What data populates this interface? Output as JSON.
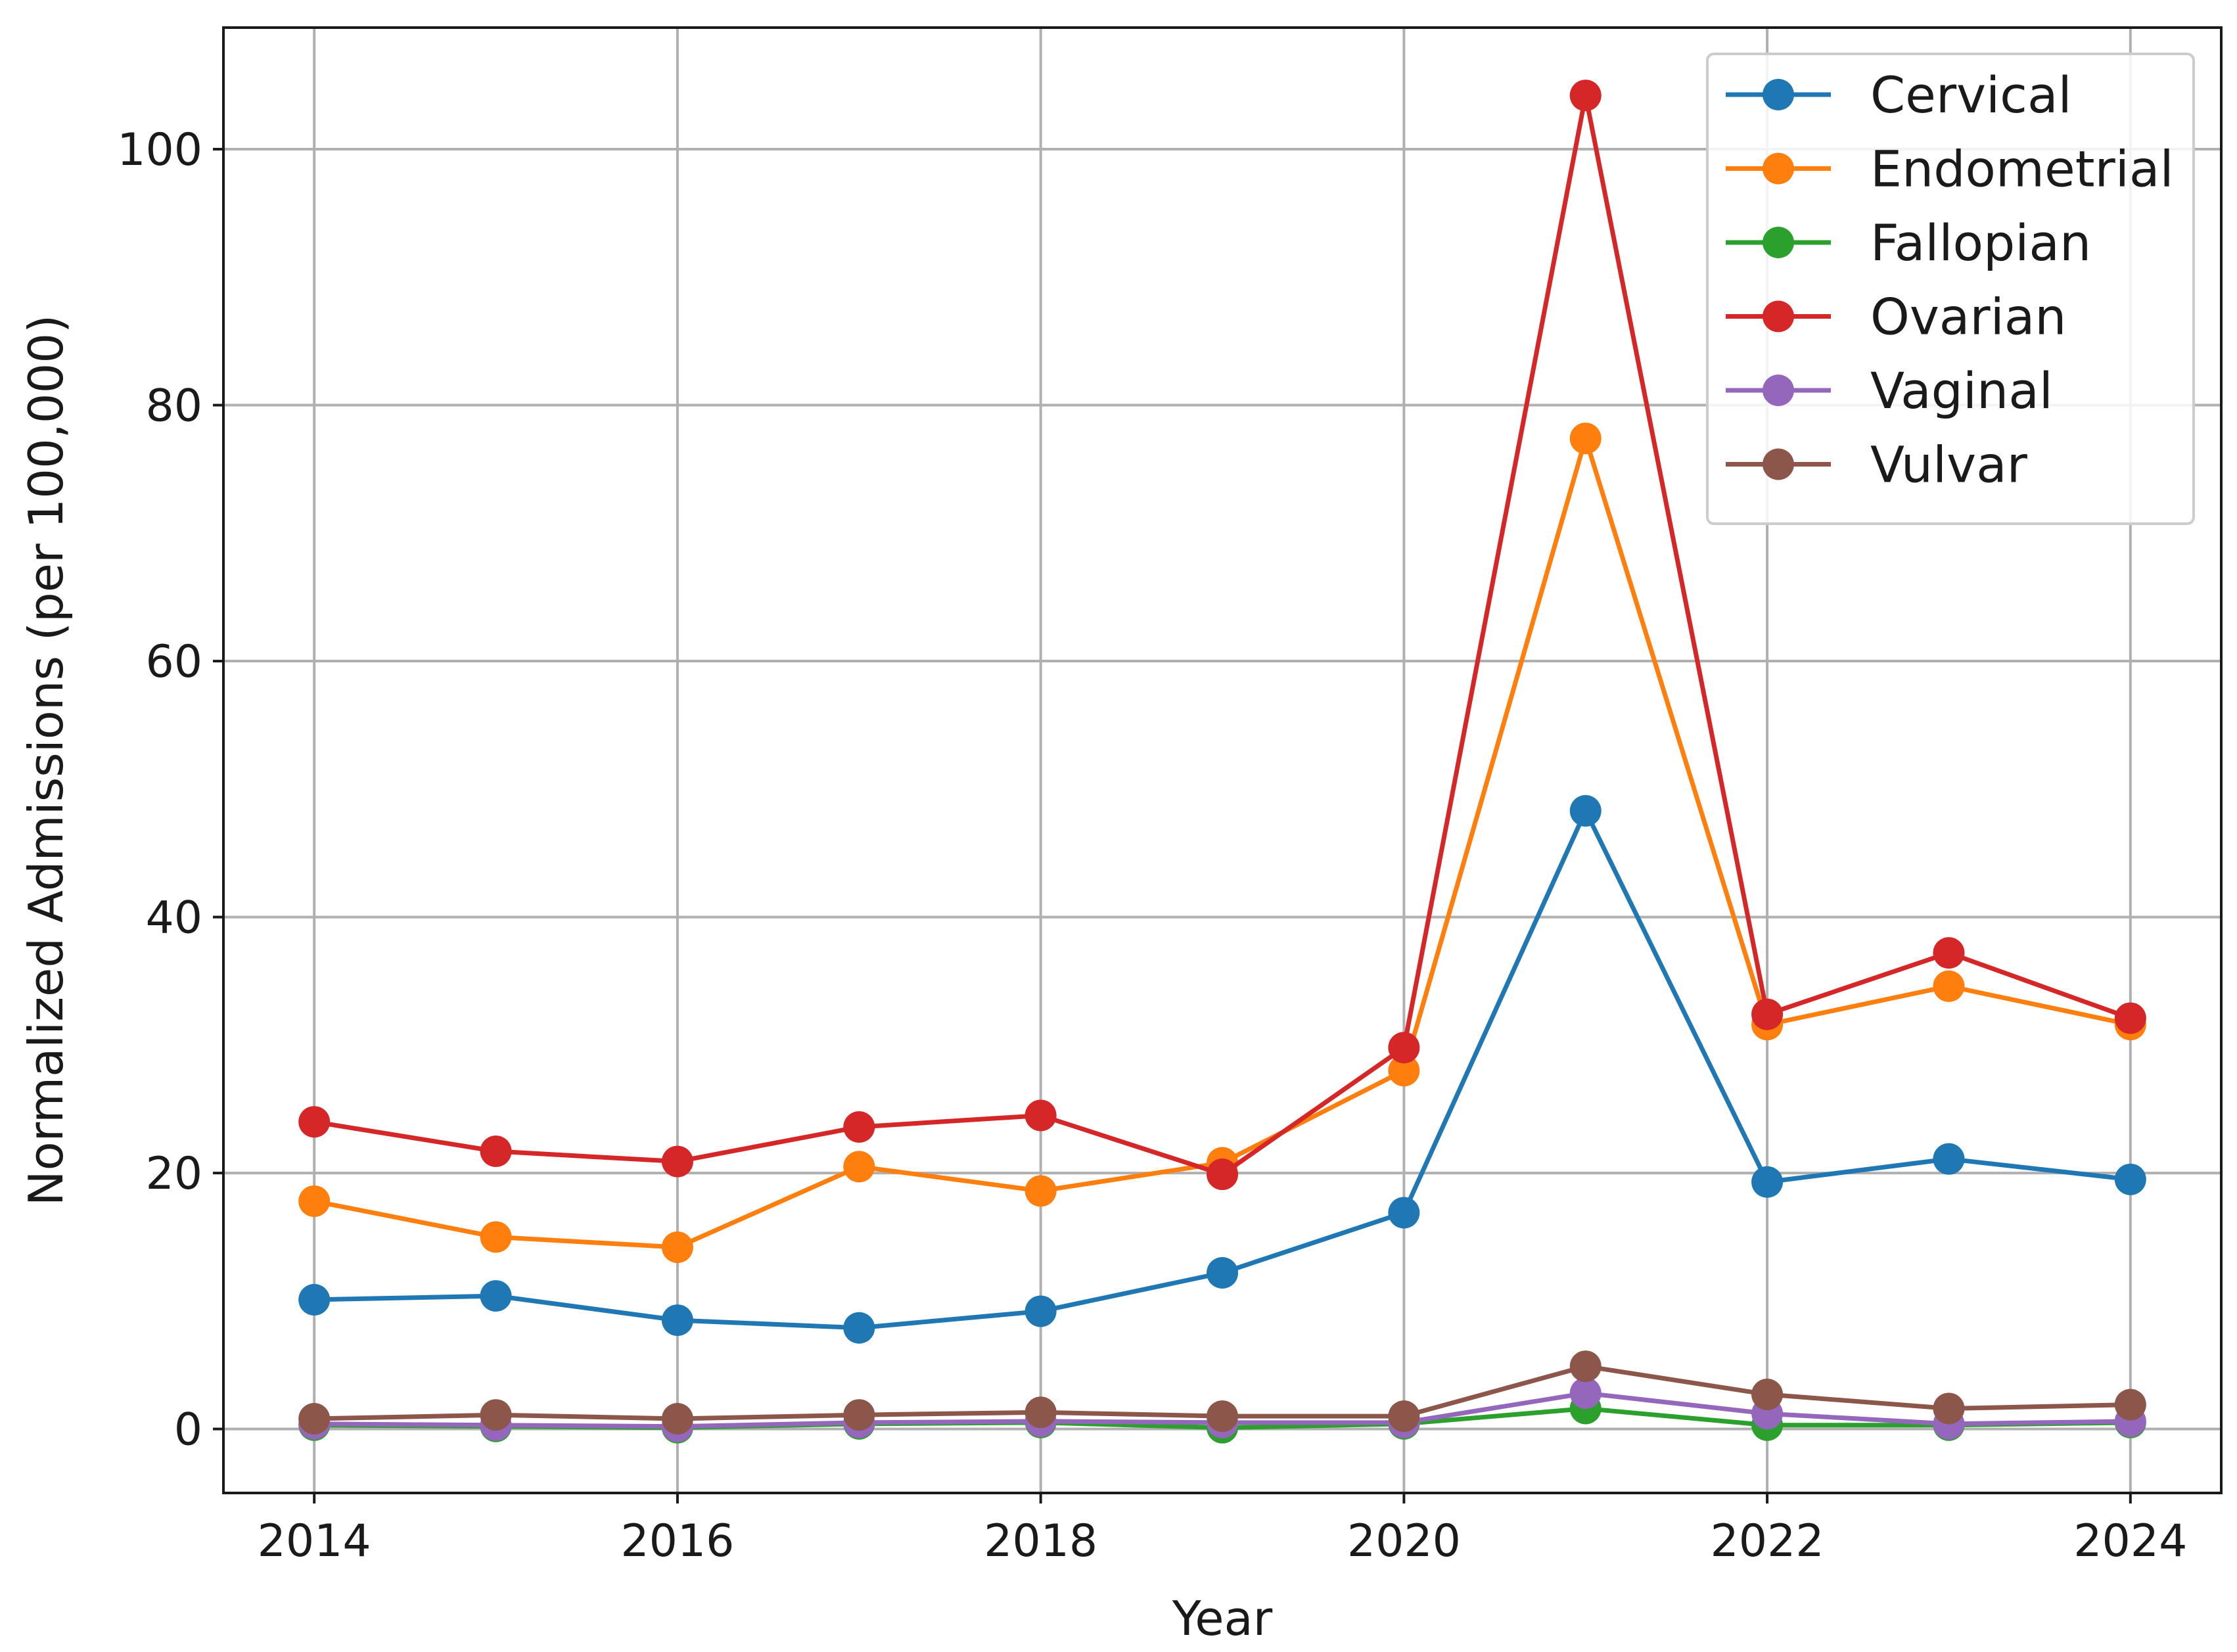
{
  "chart_data": {
    "type": "line",
    "xlabel": "Year",
    "ylabel": "Normalized Admissions (per 100,000)",
    "xlim": [
      2013.5,
      2024.5
    ],
    "ylim": [
      -5,
      109.5
    ],
    "x_ticks": [
      2014,
      2016,
      2018,
      2020,
      2022,
      2024
    ],
    "y_ticks": [
      0,
      20,
      40,
      60,
      80,
      100
    ],
    "grid": true,
    "legend_position": "top-right",
    "x": [
      2014,
      2015,
      2016,
      2017,
      2018,
      2019,
      2020,
      2021,
      2022,
      2023,
      2024
    ],
    "series": [
      {
        "name": "Cervical",
        "color": "#1f77b4",
        "values": [
          10.1,
          10.4,
          8.5,
          7.9,
          9.2,
          12.2,
          16.9,
          48.3,
          19.3,
          21.1,
          19.5
        ]
      },
      {
        "name": "Endometrial",
        "color": "#ff7f0e",
        "values": [
          17.8,
          15.0,
          14.2,
          20.5,
          18.6,
          20.8,
          28.0,
          77.4,
          31.6,
          34.6,
          31.6
        ]
      },
      {
        "name": "Fallopian",
        "color": "#2ca02c",
        "values": [
          0.3,
          0.2,
          0.1,
          0.4,
          0.5,
          0.1,
          0.4,
          1.6,
          0.3,
          0.3,
          0.5
        ]
      },
      {
        "name": "Ovarian",
        "color": "#d62728",
        "values": [
          24.0,
          21.7,
          20.9,
          23.6,
          24.5,
          19.9,
          29.8,
          104.2,
          32.4,
          37.2,
          32.1
        ]
      },
      {
        "name": "Vaginal",
        "color": "#9467bd",
        "values": [
          0.4,
          0.3,
          0.2,
          0.5,
          0.6,
          0.5,
          0.5,
          2.8,
          1.2,
          0.4,
          0.6
        ]
      },
      {
        "name": "Vulvar",
        "color": "#8c564b",
        "values": [
          0.8,
          1.1,
          0.8,
          1.1,
          1.3,
          1.0,
          1.0,
          4.9,
          2.7,
          1.6,
          1.9
        ]
      }
    ]
  }
}
